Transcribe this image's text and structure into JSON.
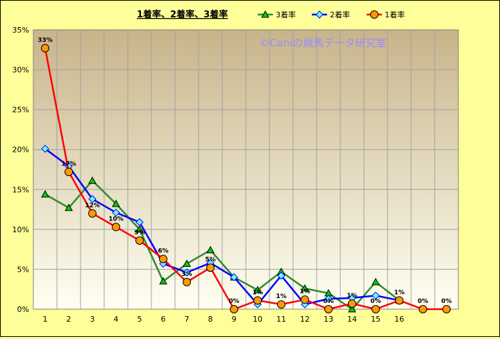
{
  "chart_data": {
    "type": "line",
    "title": "1着率、2着率、3着率",
    "watermark": "©Caniの競馬データ研究室",
    "categories": [
      "1",
      "2",
      "3",
      "4",
      "5",
      "6",
      "7",
      "8",
      "9",
      "10",
      "11",
      "12",
      "13",
      "14",
      "15",
      "16",
      "",
      ""
    ],
    "y_ticks": [
      "0%",
      "5%",
      "10%",
      "15%",
      "20%",
      "25%",
      "30%",
      "35%"
    ],
    "ylim": [
      0,
      35
    ],
    "grid": true,
    "legend_position": "top",
    "series": [
      {
        "name": "3着率",
        "color": "#2e8b2e",
        "marker": "triangle",
        "marker_fill": "#00cc00",
        "values": [
          14.4,
          12.7,
          16.1,
          13.2,
          10.0,
          3.5,
          5.7,
          7.4,
          4.0,
          2.4,
          4.7,
          2.6,
          2.0,
          0.0,
          3.4,
          1.1,
          null,
          null
        ]
      },
      {
        "name": "2着率",
        "color": "#0000ff",
        "marker": "diamond",
        "marker_fill": "#66ffff",
        "values": [
          20.1,
          17.9,
          13.8,
          12.1,
          10.9,
          5.7,
          4.6,
          5.8,
          4.0,
          0.6,
          4.2,
          0.6,
          1.3,
          1.4,
          1.7,
          1.1,
          null,
          null
        ]
      },
      {
        "name": "1着率",
        "color": "#ff0000",
        "marker": "circle",
        "marker_fill": "#ff9900",
        "values": [
          32.7,
          17.2,
          12.0,
          10.3,
          8.6,
          6.3,
          3.4,
          5.2,
          0.0,
          1.1,
          0.6,
          1.2,
          0.0,
          0.7,
          0.0,
          1.1,
          0.0,
          0.0
        ],
        "data_labels": [
          "33%",
          "17%",
          "12%",
          "10%",
          "9%",
          "6%",
          "3%",
          "5%",
          "0%",
          "1%",
          "1%",
          "1%",
          "0%",
          "1%",
          "0%",
          "1%",
          "0%",
          "0%"
        ]
      }
    ]
  }
}
